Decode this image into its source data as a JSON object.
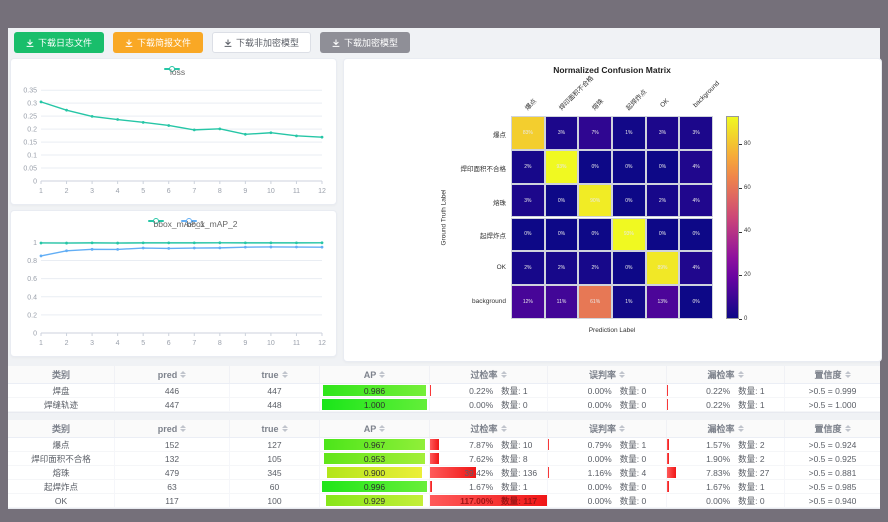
{
  "toolbar": {
    "buttons": [
      {
        "label": "下载日志文件",
        "style": "success"
      },
      {
        "label": "下载简报文件",
        "style": "warning"
      },
      {
        "label": "下载非加密模型",
        "style": "plain"
      },
      {
        "label": "下载加密模型",
        "style": "info"
      }
    ]
  },
  "chart_data": [
    {
      "id": "loss",
      "type": "line",
      "x": [
        1,
        2,
        3,
        4,
        5,
        6,
        7,
        8,
        9,
        10,
        11,
        12
      ],
      "series": [
        {
          "name": "loss",
          "color": "#26c6a6",
          "values": [
            0.305,
            0.273,
            0.249,
            0.237,
            0.226,
            0.214,
            0.197,
            0.201,
            0.18,
            0.186,
            0.174,
            0.169
          ]
        }
      ],
      "yticks": [
        0,
        0.05,
        0.1,
        0.15,
        0.2,
        0.25,
        0.3,
        0.35
      ],
      "ylim": [
        0,
        0.37
      ],
      "grid": true,
      "legend_position": "top"
    },
    {
      "id": "bbox_map",
      "type": "line",
      "x": [
        1,
        2,
        3,
        4,
        5,
        6,
        7,
        8,
        9,
        10,
        11,
        12
      ],
      "series": [
        {
          "name": "bbox_mAP_1",
          "color": "#26c6a6",
          "values": [
            0.994,
            0.993,
            0.995,
            0.993,
            0.995,
            0.995,
            0.995,
            0.996,
            0.995,
            0.995,
            0.995,
            0.996
          ]
        },
        {
          "name": "bbox_mAP_2",
          "color": "#62aef5",
          "values": [
            0.851,
            0.908,
            0.924,
            0.923,
            0.938,
            0.934,
            0.938,
            0.94,
            0.948,
            0.95,
            0.949,
            0.948
          ]
        }
      ],
      "yticks": [
        0,
        0.2,
        0.4,
        0.6,
        0.8,
        1
      ],
      "ylim": [
        0,
        1.06
      ],
      "grid": true,
      "legend_position": "top"
    },
    {
      "id": "confusion_matrix",
      "type": "heatmap",
      "title": "Normalized Confusion Matrix",
      "xlabel": "Prediction Label",
      "ylabel": "Ground Truth Label",
      "labels": [
        "爆点",
        "焊印面积不合格",
        "熔珠",
        "起焊炸点",
        "OK",
        "background"
      ],
      "unit": "%",
      "values": [
        [
          83,
          3,
          7,
          1,
          3,
          3
        ],
        [
          2,
          93,
          0,
          0,
          0,
          4
        ],
        [
          3,
          0,
          90,
          0,
          2,
          4
        ],
        [
          0,
          0,
          0,
          93,
          0,
          0
        ],
        [
          2,
          2,
          2,
          0,
          89,
          4
        ],
        [
          12,
          11,
          61,
          1,
          13,
          0
        ]
      ],
      "vmin": 0,
      "vmax": 93,
      "colorbar_ticks": [
        0,
        20,
        40,
        60,
        80
      ],
      "colormap": "plasma"
    }
  ],
  "tables": {
    "count_label": "数量",
    "columns": [
      {
        "key": "category",
        "label": "类别",
        "sortable": false
      },
      {
        "key": "pred",
        "label": "pred",
        "sortable": true
      },
      {
        "key": "true",
        "label": "true",
        "sortable": true
      },
      {
        "key": "ap",
        "label": "AP",
        "sortable": true
      },
      {
        "key": "over",
        "label": "过检率",
        "sortable": true
      },
      {
        "key": "mis",
        "label": "误判率",
        "sortable": true
      },
      {
        "key": "miss",
        "label": "漏检率",
        "sortable": true
      },
      {
        "key": "conf",
        "label": "置信度",
        "sortable": true
      }
    ],
    "groups": [
      {
        "rows": [
          {
            "category": "焊盘",
            "pred": 446,
            "true": 447,
            "ap": 0.986,
            "over": {
              "pct": 0.22,
              "count": 1
            },
            "mis": {
              "pct": 0.0,
              "count": 0
            },
            "miss": {
              "pct": 0.22,
              "count": 1
            },
            "conf": ">0.5 = 0.999"
          },
          {
            "category": "焊缝轨迹",
            "pred": 447,
            "true": 448,
            "ap": 1.0,
            "over": {
              "pct": 0.0,
              "count": 0
            },
            "mis": {
              "pct": 0.0,
              "count": 0
            },
            "miss": {
              "pct": 0.22,
              "count": 1
            },
            "conf": ">0.5 = 1.000"
          }
        ]
      },
      {
        "rows": [
          {
            "category": "爆点",
            "pred": 152,
            "true": 127,
            "ap": 0.967,
            "over": {
              "pct": 7.87,
              "count": 10
            },
            "mis": {
              "pct": 0.79,
              "count": 1
            },
            "miss": {
              "pct": 1.57,
              "count": 2
            },
            "conf": ">0.5 = 0.924"
          },
          {
            "category": "焊印面积不合格",
            "pred": 132,
            "true": 105,
            "ap": 0.953,
            "over": {
              "pct": 7.62,
              "count": 8
            },
            "mis": {
              "pct": 0.0,
              "count": 0
            },
            "miss": {
              "pct": 1.9,
              "count": 2
            },
            "conf": ">0.5 = 0.925"
          },
          {
            "category": "熔珠",
            "pred": 479,
            "true": 345,
            "ap": 0.9,
            "over": {
              "pct": 39.42,
              "count": 136
            },
            "mis": {
              "pct": 1.16,
              "count": 4
            },
            "miss": {
              "pct": 7.83,
              "count": 27
            },
            "conf": ">0.5 = 0.881"
          },
          {
            "category": "起焊炸点",
            "pred": 63,
            "true": 60,
            "ap": 0.996,
            "over": {
              "pct": 1.67,
              "count": 1
            },
            "mis": {
              "pct": 0.0,
              "count": 0
            },
            "miss": {
              "pct": 1.67,
              "count": 1
            },
            "conf": ">0.5 = 0.985"
          },
          {
            "category": "OK",
            "pred": 117,
            "true": 100,
            "ap": 0.929,
            "over": {
              "pct": 117.0,
              "count": 117
            },
            "mis": {
              "pct": 0.0,
              "count": 0
            },
            "miss": {
              "pct": 0.0,
              "count": 0
            },
            "conf": ">0.5 = 0.940"
          }
        ]
      }
    ]
  }
}
